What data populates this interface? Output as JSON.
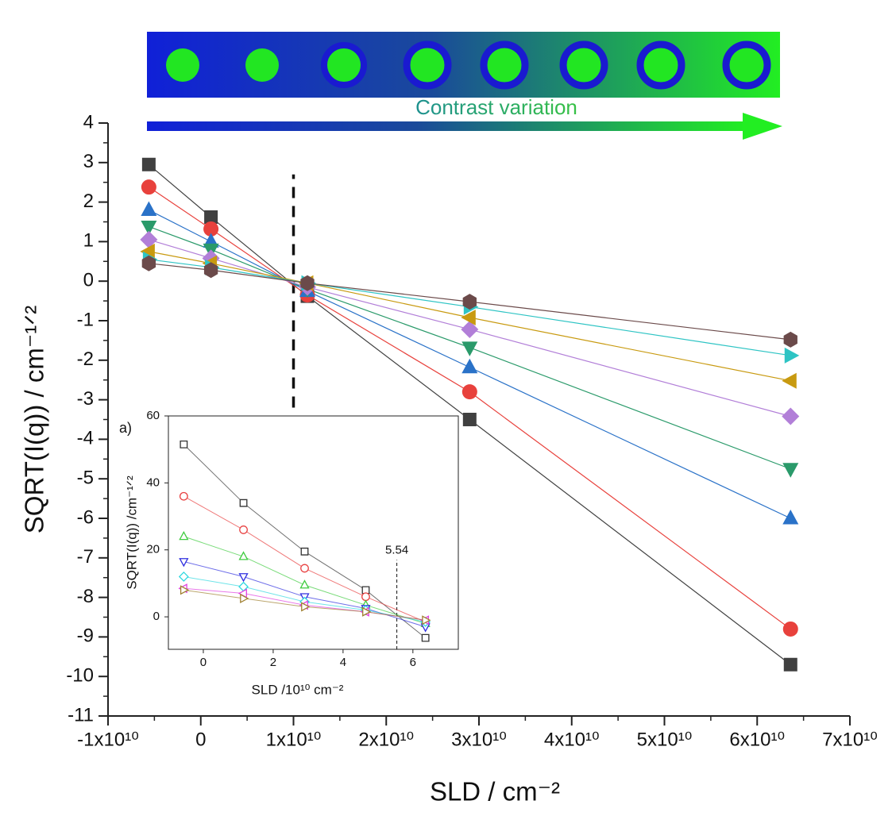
{
  "banner_label": "Contrast variation",
  "chart_data": [
    {
      "type": "line",
      "x_label": "SLD / cm⁻²",
      "y_label": "SQRT(I(q)) / cm⁻¹ᐟ²",
      "x": [
        -5600000000,
        1100000000,
        11500000000,
        29000000000,
        63600000000
      ],
      "xlim": [
        -10000000000,
        70000000000
      ],
      "xticks": [
        {
          "value": -10000000000,
          "label": "-1x10¹⁰"
        },
        0,
        {
          "value": 10000000000,
          "label": "1x10¹⁰"
        },
        {
          "value": 20000000000,
          "label": "2x10¹⁰"
        },
        {
          "value": 30000000000,
          "label": "3x10¹⁰"
        },
        {
          "value": 40000000000,
          "label": "4x10¹⁰"
        },
        {
          "value": 50000000000,
          "label": "5x10¹⁰"
        },
        {
          "value": 60000000000,
          "label": "6x10¹⁰"
        },
        {
          "value": 70000000000,
          "label": "7x10¹⁰"
        }
      ],
      "ylim": [
        -11,
        4
      ],
      "yticks": [
        -11,
        -10,
        -9,
        -8,
        -7,
        -6,
        -5,
        -4,
        -3,
        -2,
        -1,
        0,
        1,
        2,
        3,
        4
      ],
      "reference_line": {
        "x": 10000000000,
        "ymin": -3.2,
        "ymax": 2.7
      },
      "marker_fill": "solid",
      "series": [
        {
          "color": "#404040",
          "marker": "square",
          "values": [
            2.95,
            1.62,
            -0.38,
            -3.5,
            -9.7
          ]
        },
        {
          "color": "#e8413c",
          "marker": "circle",
          "values": [
            2.38,
            1.32,
            -0.35,
            -2.8,
            -8.8
          ]
        },
        {
          "color": "#2a72c8",
          "marker": "triangle-up",
          "values": [
            1.8,
            1.0,
            -0.25,
            -2.18,
            -6.0
          ]
        },
        {
          "color": "#2a9a6a",
          "marker": "triangle-down",
          "values": [
            1.38,
            0.8,
            -0.2,
            -1.68,
            -4.75
          ]
        },
        {
          "color": "#b27fd8",
          "marker": "diamond",
          "values": [
            1.05,
            0.58,
            -0.15,
            -1.22,
            -3.42
          ]
        },
        {
          "color": "#c89a10",
          "marker": "triangle-left",
          "values": [
            0.75,
            0.45,
            -0.05,
            -0.92,
            -2.52
          ]
        },
        {
          "color": "#2ec4c4",
          "marker": "triangle-right",
          "values": [
            0.55,
            0.35,
            -0.05,
            -0.65,
            -1.88
          ]
        },
        {
          "color": "#6b4a4a",
          "marker": "hexagon",
          "values": [
            0.45,
            0.28,
            -0.05,
            -0.52,
            -1.48
          ]
        }
      ]
    },
    {
      "type": "line",
      "panel_label": "a)",
      "x_label": "SLD /10¹⁰ cm⁻²",
      "y_label": "SQRT(I(q)) /cm⁻¹ᐟ²",
      "x": [
        -0.56,
        1.15,
        2.9,
        4.65,
        6.36
      ],
      "xlim": [
        -1,
        7.3
      ],
      "xticks": [
        0,
        2,
        4,
        6
      ],
      "ylim": [
        -9.7,
        60
      ],
      "yticks": [
        0,
        20,
        40,
        60
      ],
      "reference_line": {
        "x": 5.54,
        "ymin": -9.7,
        "ymax": 17,
        "label": "5.54"
      },
      "marker_fill": "none",
      "series": [
        {
          "color": "#333333",
          "marker": "square",
          "values": [
            51.5,
            34,
            19.5,
            8,
            -6.3
          ]
        },
        {
          "color": "#e84040",
          "marker": "circle",
          "values": [
            36,
            26,
            14.5,
            6,
            -1.5
          ]
        },
        {
          "color": "#40cc40",
          "marker": "triangle-up",
          "values": [
            24,
            18,
            9.5,
            3.5,
            -2
          ]
        },
        {
          "color": "#3030e0",
          "marker": "triangle-down",
          "values": [
            16.5,
            12,
            6,
            2.5,
            -3
          ]
        },
        {
          "color": "#30d8e0",
          "marker": "diamond",
          "values": [
            12,
            9,
            4.5,
            2,
            -1.5
          ]
        },
        {
          "color": "#e040e0",
          "marker": "triangle-left",
          "values": [
            8.5,
            7,
            3.5,
            1.5,
            -1
          ]
        },
        {
          "color": "#a08030",
          "marker": "triangle-right",
          "values": [
            8,
            5.5,
            3,
            1.5,
            -1
          ]
        }
      ]
    }
  ]
}
